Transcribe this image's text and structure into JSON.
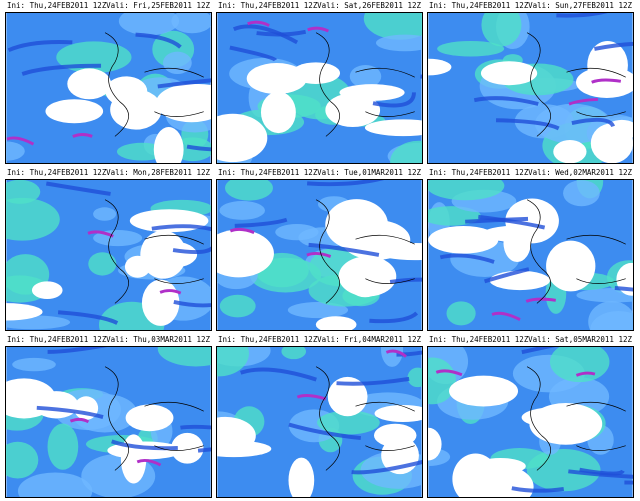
{
  "panels": [
    {
      "ini": "Ini: Thu,24FEB2011 12Z",
      "valid": "Vali: Fri,25FEB2011 12Z"
    },
    {
      "ini": "Ini: Thu,24FEB2011 12Z",
      "valid": "Vali: Sat,26FEB2011 12Z"
    },
    {
      "ini": "Ini: Thu,24FEB2011 12Z",
      "valid": "Vali: Sun,27FEB2011 12Z"
    },
    {
      "ini": "Ini: Thu,24FEB2011 12Z",
      "valid": "Vali: Mon,28FEB2011 12Z"
    },
    {
      "ini": "Ini: Thu,24FEB2011 12Z",
      "valid": "Vali: Tue,01MAR2011 12Z"
    },
    {
      "ini": "Ini: Thu,24FEB2011 12Z",
      "valid": "Vali: Wed,02MAR2011 12Z"
    },
    {
      "ini": "Ini: Thu,24FEB2011 12Z",
      "valid": "Vali: Thu,03MAR2011 12Z"
    },
    {
      "ini": "Ini: Thu,24FEB2011 12Z",
      "valid": "Vali: Fri,04MAR2011 12Z"
    },
    {
      "ini": "Ini: Thu,24FEB2011 12Z",
      "valid": "Vali: Sat,05MAR2011 12Z"
    }
  ]
}
